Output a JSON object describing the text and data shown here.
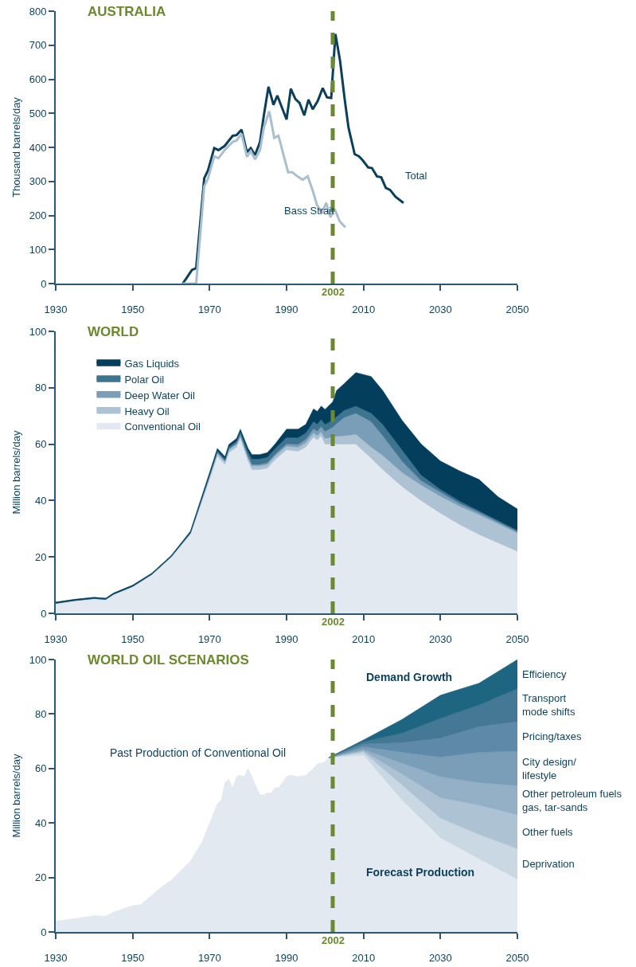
{
  "chart_data": [
    {
      "type": "line",
      "title": "AUSTRALIA",
      "ylabel": "Thousand barrels/day",
      "xlim": [
        1930,
        2050
      ],
      "xticks": [
        1930,
        1950,
        1970,
        1990,
        2010,
        2030,
        2050
      ],
      "ylim": [
        0,
        800
      ],
      "yticks": [
        0,
        100,
        200,
        300,
        400,
        500,
        600,
        700,
        800
      ],
      "series": [
        {
          "name": "Total",
          "color": "#0b3f5c",
          "x": [
            1963,
            1964,
            1965.4,
            1966.5,
            1968.6,
            1969.6,
            1971.2,
            1972.3,
            1973.9,
            1976,
            1977,
            1978.3,
            1979.7,
            1980.7,
            1981.8,
            1983.1,
            1984.1,
            1985.3,
            1986.6,
            1987.6,
            1990,
            1991.1,
            1992.3,
            1993.4,
            1994.6,
            1995.7,
            1996.8,
            1998.1,
            1999.4,
            2000.5,
            2001.6,
            2002.7,
            2003.9,
            2005.1,
            2006.1,
            2007.7,
            2008.8,
            2009.8,
            2011.2,
            2012.2,
            2013.5,
            2014.6,
            2015.8,
            2016.9,
            2018.3,
            2020.4
          ],
          "values": [
            0,
            16,
            40,
            45,
            309,
            333,
            398,
            392,
            404,
            434,
            436,
            452,
            386,
            398,
            377,
            416,
            494,
            578,
            525,
            552,
            482,
            572,
            542,
            530,
            494,
            540,
            512,
            536,
            574,
            547,
            545,
            733,
            655,
            542,
            458,
            380,
            374,
            362,
            341,
            339,
            315,
            312,
            281,
            275,
            255,
            237
          ]
        },
        {
          "name": "Bass Strait",
          "color": "#a9bfd0",
          "x": [
            1963,
            1966.5,
            1968.6,
            1969.6,
            1971.2,
            1972.3,
            1973.9,
            1976,
            1977,
            1978.3,
            1979.7,
            1980.7,
            1981.8,
            1983.1,
            1984.1,
            1985.5,
            1986.8,
            1987.9,
            1990.4,
            1991.5,
            1992.8,
            1994.2,
            1995.5,
            1996.8,
            1997.9,
            1999.2,
            2000.3,
            2001.4,
            2002.5,
            2003.8,
            2005.3
          ],
          "values": [
            0,
            0,
            285,
            309,
            374,
            368,
            392,
            416,
            420,
            440,
            372,
            389,
            365,
            392,
            458,
            506,
            428,
            434,
            327,
            327,
            315,
            305,
            315,
            273,
            231,
            207,
            237,
            195,
            219,
            183,
            165
          ]
        }
      ],
      "ref_lines": [
        {
          "axis": "x",
          "value": 2002,
          "label": "2002",
          "color": "#6b8a2e",
          "line_style": "dashed"
        }
      ]
    },
    {
      "type": "area",
      "stacked": true,
      "title": "WORLD",
      "ylabel": "Million barrels/day",
      "legend": "top left",
      "xlim": [
        1930,
        2050
      ],
      "xticks": [
        1930,
        1950,
        1970,
        1990,
        2010,
        2030,
        2050
      ],
      "ylim": [
        0,
        100
      ],
      "yticks": [
        0,
        20,
        40,
        60,
        80,
        100
      ],
      "x": [
        1930,
        1935,
        1940,
        1943,
        1945,
        1950,
        1955,
        1960,
        1965,
        1970,
        1972,
        1974,
        1975,
        1977,
        1978,
        1980,
        1981,
        1983,
        1985,
        1987,
        1990,
        1993,
        1995,
        1997,
        1998,
        1999,
        2000,
        2002,
        2003,
        2005,
        2008,
        2012,
        2015,
        2020,
        2025,
        2030,
        2035,
        2040,
        2045,
        2050
      ],
      "series": [
        {
          "name": "Conventional Oil",
          "color": "#e3e9f0",
          "values": [
            3.4,
            4.4,
            5.1,
            4.8,
            6.6,
            9.4,
            13.7,
            19.9,
            28,
            47.5,
            55.8,
            52.8,
            57,
            58.9,
            62,
            54,
            51,
            51,
            51.5,
            54.5,
            58,
            57.5,
            59,
            62.5,
            61.5,
            63,
            60,
            60,
            60,
            60,
            60,
            55,
            51,
            45,
            40,
            35.5,
            31.5,
            28,
            25,
            22
          ]
        },
        {
          "name": "Heavy Oil",
          "color": "#adc3d4",
          "values": [
            0.2,
            0.2,
            0.2,
            0.2,
            0.2,
            0.2,
            0.2,
            0.2,
            0.4,
            1,
            1,
            1,
            1,
            1,
            1,
            1.2,
            1.3,
            1.3,
            1.3,
            1.3,
            1.3,
            1.4,
            1.5,
            1.5,
            1.5,
            1.5,
            2,
            2.5,
            2.8,
            3,
            3.5,
            4,
            5,
            5,
            5.5,
            6,
            6.5,
            7,
            6.8,
            6.5
          ]
        },
        {
          "name": "Deep Water Oil",
          "color": "#7a9eb8",
          "values": [
            0,
            0,
            0,
            0,
            0,
            0,
            0,
            0,
            0,
            0.3,
            0.3,
            0.3,
            0.3,
            0.4,
            0.4,
            0.5,
            0.5,
            0.5,
            0.6,
            0.6,
            0.8,
            1,
            1.2,
            1.5,
            1.6,
            1.8,
            2.5,
            3.5,
            4.5,
            6.5,
            7.5,
            9,
            7,
            4,
            1.5,
            1.5,
            1,
            0.8,
            0.6,
            0.5
          ]
        },
        {
          "name": "Polar Oil",
          "color": "#3f7491",
          "values": [
            0,
            0,
            0,
            0,
            0,
            0,
            0,
            0,
            0.2,
            0.4,
            0.5,
            0.6,
            0.7,
            0.8,
            1,
            1.5,
            2,
            2,
            2,
            2,
            2.3,
            2.4,
            2.3,
            2.5,
            2.5,
            2.5,
            2.5,
            2.5,
            2.5,
            2.5,
            2.5,
            3,
            4,
            4,
            2,
            1,
            0.8,
            0.6,
            0.5,
            0.5
          ]
        },
        {
          "name": "Gas Liquids",
          "color": "#033f5c",
          "values": [
            0.4,
            0.4,
            0.4,
            0.4,
            0.4,
            0.4,
            0.4,
            0.4,
            0.5,
            0.8,
            0.9,
            0.9,
            0.9,
            0.9,
            0.9,
            1.3,
            1.5,
            1.5,
            1.6,
            1.6,
            2.9,
            3,
            3,
            4.5,
            4.5,
            4.7,
            5.3,
            6.5,
            9.2,
            9.5,
            11.9,
            13,
            12,
            10.5,
            11,
            10,
            10.7,
            11.1,
            8.4,
            7.5
          ]
        }
      ],
      "ref_lines": [
        {
          "axis": "x",
          "value": 2002,
          "label": "2002",
          "color": "#6b8a2e",
          "line_style": "dashed"
        }
      ]
    },
    {
      "type": "area",
      "stacked": true,
      "title": "WORLD OIL SCENARIOS",
      "ylabel": "Million barrels/day",
      "xlim": [
        1930,
        2050
      ],
      "xticks": [
        1930,
        1950,
        1970,
        1990,
        2010,
        2030,
        2050
      ],
      "ylim": [
        0,
        100
      ],
      "yticks": [
        0,
        20,
        40,
        60,
        80,
        100
      ],
      "x": [
        1930,
        1935,
        1940,
        1943,
        1945,
        1950,
        1952,
        1955,
        1957,
        1960,
        1965,
        1968,
        1970,
        1972,
        1973,
        1974,
        1975,
        1976,
        1977,
        1978,
        1979,
        1980,
        1981,
        1983,
        1984,
        1985,
        1986,
        1987,
        1988,
        1990,
        1991,
        1993,
        1995,
        1997,
        1998,
        2000,
        2001,
        2010,
        2020,
        2030,
        2040,
        2050
      ],
      "series": [
        {
          "color": "#e3e9f0",
          "values": [
            4,
            4.9,
            6,
            5.8,
            7.3,
            9.7,
            10,
            13.5,
            16,
            19,
            26,
            33,
            40,
            47,
            48.5,
            55,
            56,
            53,
            57,
            57.5,
            57,
            60,
            57,
            50.5,
            50.3,
            51,
            51,
            53,
            53,
            57,
            57.6,
            57,
            57.5,
            60,
            61.7,
            62.5,
            64,
            65,
            48.5,
            34.6,
            26.9,
            19.4
          ]
        },
        {
          "name": "Deprivation",
          "color": "#c9d8e3",
          "values": [
            null,
            null,
            null,
            null,
            null,
            null,
            null,
            null,
            null,
            null,
            null,
            null,
            null,
            null,
            null,
            null,
            null,
            null,
            null,
            null,
            null,
            null,
            null,
            null,
            null,
            null,
            null,
            null,
            null,
            null,
            null,
            null,
            null,
            null,
            null,
            null,
            0,
            1,
            5.5,
            7.2,
            8.9,
            11.2
          ]
        },
        {
          "name": "Other fuels",
          "color": "#adc3d4",
          "values": [
            null,
            null,
            null,
            null,
            null,
            null,
            null,
            null,
            null,
            null,
            null,
            null,
            null,
            null,
            null,
            null,
            null,
            null,
            null,
            null,
            null,
            null,
            null,
            null,
            null,
            null,
            null,
            null,
            null,
            null,
            null,
            null,
            null,
            null,
            null,
            null,
            0,
            0.5,
            4,
            7.5,
            10.8,
            12.4
          ]
        },
        {
          "name": "Other petroleum fuels\ngas, tar-sands",
          "color": "#93b0c6",
          "values": [
            null,
            null,
            null,
            null,
            null,
            null,
            null,
            null,
            null,
            null,
            null,
            null,
            null,
            null,
            null,
            null,
            null,
            null,
            null,
            null,
            null,
            null,
            null,
            null,
            null,
            null,
            null,
            null,
            null,
            null,
            null,
            null,
            null,
            null,
            null,
            null,
            0,
            0.5,
            4,
            7.7,
            8.2,
            10.7
          ]
        },
        {
          "name": "City design/\nlifestyle",
          "color": "#7a9eb8",
          "values": [
            null,
            null,
            null,
            null,
            null,
            null,
            null,
            null,
            null,
            null,
            null,
            null,
            null,
            null,
            null,
            null,
            null,
            null,
            null,
            null,
            null,
            null,
            null,
            null,
            null,
            null,
            null,
            null,
            null,
            null,
            null,
            null,
            null,
            null,
            null,
            null,
            0,
            1,
            4,
            7.2,
            11.2,
            12.7
          ]
        },
        {
          "name": "Pricing/taxes",
          "color": "#5f89a8",
          "values": [
            null,
            null,
            null,
            null,
            null,
            null,
            null,
            null,
            null,
            null,
            null,
            null,
            null,
            null,
            null,
            null,
            null,
            null,
            null,
            null,
            null,
            null,
            null,
            null,
            null,
            null,
            null,
            null,
            null,
            null,
            null,
            null,
            null,
            null,
            null,
            null,
            0,
            1,
            3.5,
            7,
            9.4,
            10.8
          ]
        },
        {
          "name": "Transport\nmode shifts",
          "color": "#447895",
          "values": [
            null,
            null,
            null,
            null,
            null,
            null,
            null,
            null,
            null,
            null,
            null,
            null,
            null,
            null,
            null,
            null,
            null,
            null,
            null,
            null,
            null,
            null,
            null,
            null,
            null,
            null,
            null,
            null,
            null,
            null,
            null,
            null,
            null,
            null,
            null,
            null,
            0,
            0.8,
            3.5,
            7.2,
            7.9,
            12.1
          ]
        },
        {
          "name": "Efficiency",
          "color": "#1d6580",
          "values": [
            null,
            null,
            null,
            null,
            null,
            null,
            null,
            null,
            null,
            null,
            null,
            null,
            null,
            null,
            null,
            null,
            null,
            null,
            null,
            null,
            null,
            null,
            null,
            null,
            null,
            null,
            null,
            null,
            null,
            null,
            null,
            null,
            null,
            null,
            null,
            null,
            0,
            0.7,
            5,
            8.5,
            8,
            10.7
          ]
        }
      ],
      "annotations": [
        "Past Production of Conventional Oil",
        "Demand Growth",
        "Forecast Production"
      ],
      "ref_lines": [
        {
          "axis": "x",
          "value": 2002,
          "label": "2002",
          "color": "#6b8a2e",
          "line_style": "dashed"
        }
      ]
    }
  ]
}
